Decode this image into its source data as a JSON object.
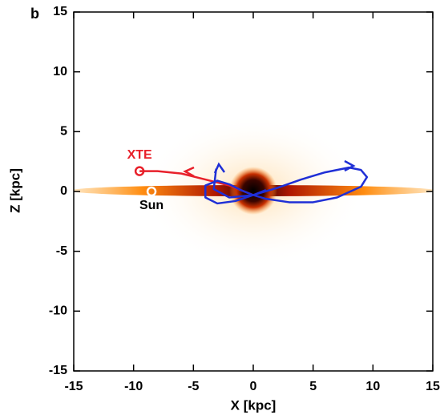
{
  "chart_data": {
    "type": "line",
    "panel_label": "b",
    "xlabel": "X [kpc]",
    "ylabel": "Z [kpc]",
    "xlim": [
      -15,
      15
    ],
    "ylim": [
      -15,
      15
    ],
    "xticks": [
      -15,
      -10,
      -5,
      0,
      5,
      10,
      15
    ],
    "yticks": [
      -15,
      -10,
      -5,
      0,
      5,
      10,
      15
    ],
    "series": [
      {
        "color": "#e8202a",
        "x": [
          -9.5,
          -8,
          -6,
          -4,
          -2,
          0
        ],
        "y": [
          1.7,
          1.7,
          1.5,
          1.0,
          0.5,
          -0.3
        ]
      },
      {
        "color": "#1f2fd6",
        "x": [
          0,
          2,
          4,
          6,
          8,
          9,
          9.5,
          9,
          7,
          5,
          3,
          1,
          0,
          -1,
          -2,
          -3,
          -4,
          -4,
          -3,
          -1.5,
          0,
          1,
          0,
          -2,
          -3.3,
          -3.1
        ],
        "y": [
          -0.3,
          0.3,
          1.0,
          1.6,
          2.0,
          1.8,
          1.2,
          0.4,
          -0.5,
          -0.9,
          -0.9,
          -0.6,
          -0.3,
          0.1,
          0.6,
          0.9,
          0.5,
          -0.5,
          -1.0,
          -0.8,
          -0.3,
          0.1,
          -0.3,
          -0.5,
          0.2,
          1.9
        ]
      }
    ],
    "points": [
      {
        "label": "XTE",
        "x": -9.5,
        "y": 1.7,
        "color": "#e8202a"
      },
      {
        "label": "Sun",
        "x": -8.5,
        "y": 0,
        "color": "#ffffff"
      }
    ]
  }
}
